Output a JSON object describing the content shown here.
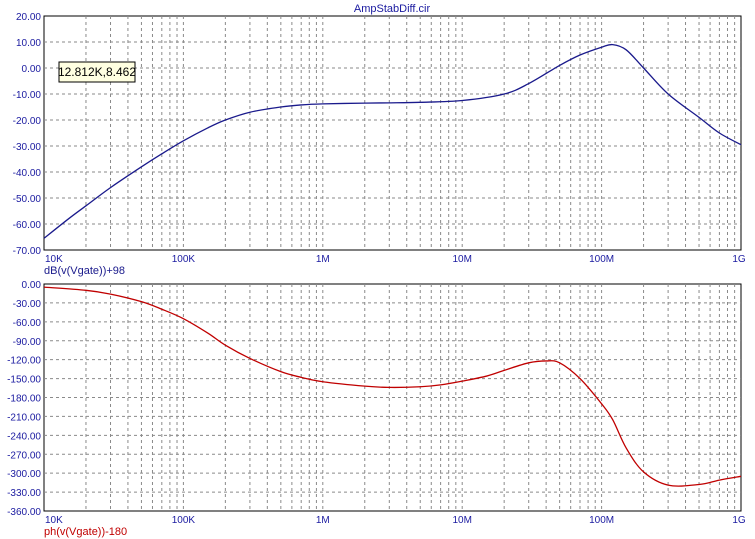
{
  "title": "AmpStabDiff.cir",
  "cursor_readout": "12.812K,8.462",
  "chart_data": [
    {
      "type": "line",
      "title": "AmpStabDiff.cir",
      "xlabel": "",
      "ylabel": "dB(v(Vgate))+98",
      "xscale": "log",
      "xlim": [
        10000,
        1000000000
      ],
      "ylim": [
        -70,
        20
      ],
      "xticks": [
        10000,
        100000,
        1000000,
        10000000,
        100000000,
        1000000000
      ],
      "xtick_labels": [
        "10K",
        "100K",
        "1M",
        "10M",
        "100M",
        "1G"
      ],
      "yticks": [
        20,
        10,
        0,
        -10,
        -20,
        -30,
        -40,
        -50,
        -60,
        -70
      ],
      "ytick_labels": [
        "20.00",
        "10.00",
        "0.00",
        "-10.00",
        "-20.00",
        "-30.00",
        "-40.00",
        "-50.00",
        "-60.00",
        "-70.00"
      ],
      "grid": true,
      "series": [
        {
          "name": "dB(v(Vgate))+98",
          "color": "#1a1a8c",
          "x": [
            10000,
            15000,
            20000,
            30000,
            50000,
            70000,
            100000,
            150000,
            200000,
            300000,
            500000,
            700000,
            1000000,
            2000000,
            3000000,
            5000000,
            10000000,
            20000000,
            30000000,
            50000000,
            70000000,
            100000000,
            120000000,
            150000000,
            200000000,
            300000000,
            500000000,
            700000000,
            1000000000
          ],
          "y": [
            -65.5,
            -58,
            -53,
            -46,
            -38,
            -33,
            -28,
            -23,
            -20,
            -17,
            -15,
            -14.2,
            -13.8,
            -13.5,
            -13.4,
            -13.2,
            -12.5,
            -10,
            -6,
            1,
            5,
            8,
            9,
            7,
            0,
            -10,
            -19,
            -25,
            -29.5
          ]
        }
      ]
    },
    {
      "type": "line",
      "xlabel": "",
      "ylabel": "ph(v(Vgate))-180",
      "xscale": "log",
      "xlim": [
        10000,
        1000000000
      ],
      "ylim": [
        -360,
        0
      ],
      "xticks": [
        10000,
        100000,
        1000000,
        10000000,
        100000000,
        1000000000
      ],
      "xtick_labels": [
        "10K",
        "100K",
        "1M",
        "10M",
        "100M",
        "1G"
      ],
      "yticks": [
        0,
        -30,
        -60,
        -90,
        -120,
        -150,
        -180,
        -210,
        -240,
        -270,
        -300,
        -330,
        -360
      ],
      "ytick_labels": [
        "0.00",
        "-30.00",
        "-60.00",
        "-90.00",
        "-120.00",
        "-150.00",
        "-180.00",
        "-210.00",
        "-240.00",
        "-270.00",
        "-300.00",
        "-330.00",
        "-360.00"
      ],
      "grid": true,
      "series": [
        {
          "name": "ph(v(Vgate))-180",
          "color": "#c00000",
          "x": [
            10000,
            20000,
            30000,
            50000,
            70000,
            100000,
            150000,
            200000,
            300000,
            500000,
            700000,
            1000000,
            2000000,
            3000000,
            5000000,
            7000000,
            10000000,
            15000000,
            20000000,
            30000000,
            40000000,
            50000000,
            70000000,
            100000000,
            120000000,
            150000000,
            200000000,
            300000000,
            500000000,
            700000000,
            1000000000
          ],
          "y": [
            -5,
            -10,
            -16,
            -28,
            -40,
            -55,
            -78,
            -97,
            -118,
            -139,
            -148,
            -155,
            -162,
            -164,
            -163,
            -160,
            -154,
            -146,
            -137,
            -125,
            -122,
            -125,
            -150,
            -190,
            -215,
            -260,
            -298,
            -319,
            -318,
            -311,
            -305
          ]
        }
      ]
    }
  ]
}
